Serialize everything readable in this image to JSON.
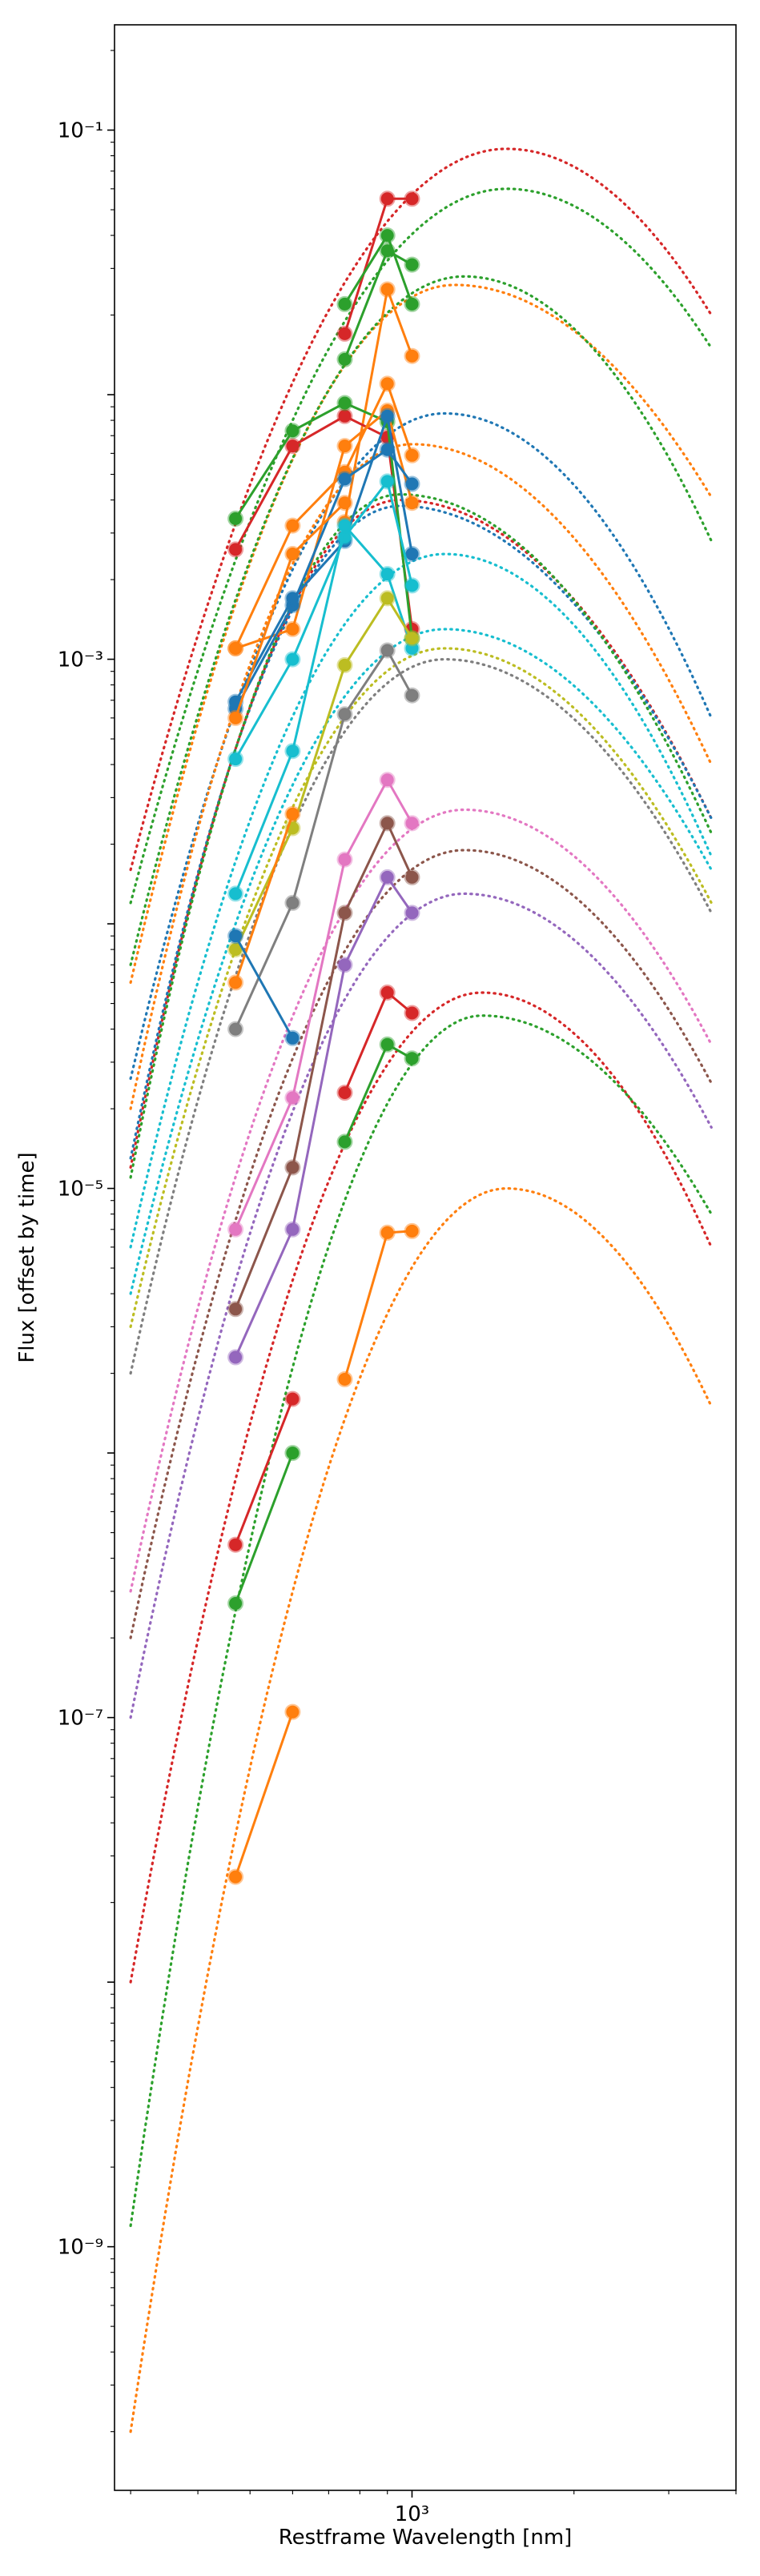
{
  "chart_data": {
    "type": "line",
    "xlabel": "Restframe Wavelength [nm]",
    "ylabel": "Flux [offset by time]",
    "x_scale": "log",
    "y_scale": "log",
    "xlim": [
      280,
      4000
    ],
    "ylim": [
      1.2e-10,
      0.25
    ],
    "x_tick_labels": [
      {
        "value": 1000,
        "label": "10³"
      }
    ],
    "y_tick_labels": [
      {
        "value": 0.1,
        "label": "10⁻¹"
      },
      {
        "value": 0.001,
        "label": "10⁻³"
      },
      {
        "value": 1e-05,
        "label": "10⁻⁵"
      },
      {
        "value": 1e-07,
        "label": "10⁻⁷"
      },
      {
        "value": 1e-09,
        "label": "10⁻⁹"
      }
    ],
    "grid": false,
    "colors": {
      "blue": "#1f77b4",
      "orange": "#ff7f0e",
      "green": "#2ca02c",
      "red": "#d62728",
      "purple": "#9467bd",
      "brown": "#8c564b",
      "pink": "#e377c2",
      "gray": "#7f7f7f",
      "olive": "#bcbd22",
      "cyan": "#17becf"
    },
    "observed_series": [
      {
        "color": "red",
        "x": [
          750,
          900,
          1000
        ],
        "y": [
          0.017,
          0.055,
          0.055
        ]
      },
      {
        "color": "green",
        "x": [
          750,
          900,
          1000
        ],
        "y": [
          0.0136,
          0.035,
          0.031
        ]
      },
      {
        "color": "orange",
        "x": [
          750,
          900,
          1000
        ],
        "y": [
          0.0033,
          0.025,
          0.014
        ]
      },
      {
        "color": "green",
        "x": [
          750,
          900,
          1000
        ],
        "y": [
          0.022,
          0.04,
          0.022
        ]
      },
      {
        "color": "red",
        "x": [
          470,
          600,
          750,
          900,
          1000
        ],
        "y": [
          0.0026,
          0.0064,
          0.0083,
          0.0069,
          0.0013
        ]
      },
      {
        "color": "green",
        "x": [
          470,
          600,
          750,
          900,
          1000
        ],
        "y": [
          0.0034,
          0.0073,
          0.0093,
          0.0079,
          0.0012
        ]
      },
      {
        "color": "orange",
        "x": [
          470,
          600,
          750,
          900,
          1000
        ],
        "y": [
          0.0011,
          0.0032,
          0.0051,
          0.011,
          0.0059
        ]
      },
      {
        "color": "orange",
        "x": [
          470,
          600,
          750,
          900,
          1000
        ],
        "y": [
          0.0011,
          0.0013,
          0.0064,
          0.0087,
          0.0039
        ]
      },
      {
        "color": "blue",
        "x": [
          470,
          600,
          750,
          900,
          1000
        ],
        "y": [
          0.00065,
          0.0016,
          0.0048,
          0.0062,
          0.0046
        ]
      },
      {
        "color": "blue",
        "x": [
          470,
          600,
          750,
          900,
          1000
        ],
        "y": [
          0.00069,
          0.0017,
          0.0028,
          0.0083,
          0.0025
        ]
      },
      {
        "color": "orange",
        "x": [
          470,
          600,
          750
        ],
        "y": [
          0.0006,
          0.0025,
          0.0039
        ]
      },
      {
        "color": "cyan",
        "x": [
          470,
          600,
          750,
          900,
          1000
        ],
        "y": [
          0.00042,
          0.001,
          0.0029,
          0.0047,
          0.0019
        ]
      },
      {
        "color": "cyan",
        "x": [
          470,
          600,
          750,
          900,
          1000
        ],
        "y": [
          0.00013,
          0.00045,
          0.0032,
          0.0021,
          0.0011
        ]
      },
      {
        "color": "olive",
        "x": [
          470,
          600,
          750,
          900,
          1000
        ],
        "y": [
          8e-05,
          0.00023,
          0.00095,
          0.0017,
          0.0012
        ]
      },
      {
        "color": "gray",
        "x": [
          470,
          600,
          750,
          900,
          1000
        ],
        "y": [
          4e-05,
          0.00012,
          0.00062,
          0.00108,
          0.00073
        ]
      },
      {
        "color": "orange",
        "x": [
          470,
          600
        ],
        "y": [
          6e-05,
          0.00026
        ]
      },
      {
        "color": "blue",
        "x": [
          470,
          600
        ],
        "y": [
          9e-05,
          3.7e-05
        ]
      },
      {
        "color": "pink",
        "x": [
          470,
          600,
          750,
          900,
          1000
        ],
        "y": [
          7e-06,
          2.2e-05,
          0.000175,
          0.00035,
          0.00024
        ]
      },
      {
        "color": "brown",
        "x": [
          470,
          600,
          750,
          900,
          1000
        ],
        "y": [
          3.5e-06,
          1.2e-05,
          0.00011,
          0.00024,
          0.00015
        ]
      },
      {
        "color": "purple",
        "x": [
          470,
          600,
          750,
          900,
          1000
        ],
        "y": [
          2.3e-06,
          7e-06,
          7e-05,
          0.00015,
          0.00011
        ]
      },
      {
        "color": "red",
        "x": [
          750,
          900,
          1000
        ],
        "y": [
          2.3e-05,
          5.5e-05,
          4.6e-05
        ]
      },
      {
        "color": "green",
        "x": [
          750,
          900,
          1000
        ],
        "y": [
          1.5e-05,
          3.5e-05,
          3.1e-05
        ]
      },
      {
        "color": "red",
        "x": [
          470,
          600
        ],
        "y": [
          4.5e-07,
          1.6e-06
        ]
      },
      {
        "color": "green",
        "x": [
          470,
          600
        ],
        "y": [
          2.7e-07,
          1e-06
        ]
      },
      {
        "color": "orange",
        "x": [
          750,
          900,
          1000
        ],
        "y": [
          1.9e-06,
          6.8e-06,
          6.9e-06
        ]
      },
      {
        "color": "orange",
        "x": [
          470,
          600
        ],
        "y": [
          2.5e-08,
          1.05e-07
        ]
      }
    ],
    "model_curves": [
      {
        "color": "red",
        "amp": 0.085,
        "peak": 1500,
        "start": 0.00016,
        "end": 0.02
      },
      {
        "color": "green",
        "amp": 0.06,
        "peak": 1500,
        "start": 0.00012,
        "end": 0.015
      },
      {
        "color": "orange",
        "amp": 0.026,
        "peak": 1200,
        "start": 6e-05,
        "end": 0.0041
      },
      {
        "color": "green",
        "amp": 0.028,
        "peak": 1250,
        "start": 7e-05,
        "end": 0.0028
      },
      {
        "color": "blue",
        "amp": 0.0085,
        "peak": 1150,
        "start": 2.6e-05,
        "end": 0.0006
      },
      {
        "color": "orange",
        "amp": 0.0065,
        "peak": 1000,
        "start": 2e-05,
        "end": 0.0004
      },
      {
        "color": "red",
        "amp": 0.004,
        "peak": 950,
        "start": 1.2e-05,
        "end": 0.00025
      },
      {
        "color": "blue",
        "amp": 0.0038,
        "peak": 950,
        "start": 1.3e-05,
        "end": 0.00025
      },
      {
        "color": "green",
        "amp": 0.0042,
        "peak": 950,
        "start": 1.1e-05,
        "end": 0.00022
      },
      {
        "color": "cyan",
        "amp": 0.0025,
        "peak": 1150,
        "start": 6e-06,
        "end": 0.00018
      },
      {
        "color": "cyan",
        "amp": 0.0013,
        "peak": 1150,
        "start": 4e-06,
        "end": 0.00016
      },
      {
        "color": "olive",
        "amp": 0.0011,
        "peak": 1150,
        "start": 3e-06,
        "end": 0.00012
      },
      {
        "color": "gray",
        "amp": 0.001,
        "peak": 1150,
        "start": 2e-06,
        "end": 0.00011
      },
      {
        "color": "pink",
        "amp": 0.00027,
        "peak": 1250,
        "start": 3e-07,
        "end": 3.5e-05
      },
      {
        "color": "brown",
        "amp": 0.00019,
        "peak": 1250,
        "start": 2e-07,
        "end": 2.5e-05
      },
      {
        "color": "purple",
        "amp": 0.00013,
        "peak": 1250,
        "start": 1e-07,
        "end": 1.7e-05
      },
      {
        "color": "red",
        "amp": 5.5e-05,
        "peak": 1350,
        "start": 1e-08,
        "end": 6e-06
      },
      {
        "color": "green",
        "amp": 4.5e-05,
        "peak": 1350,
        "start": 1.2e-09,
        "end": 8e-06
      },
      {
        "color": "orange",
        "amp": 1e-05,
        "peak": 1500,
        "start": 2e-10,
        "end": 1.5e-06
      }
    ]
  }
}
